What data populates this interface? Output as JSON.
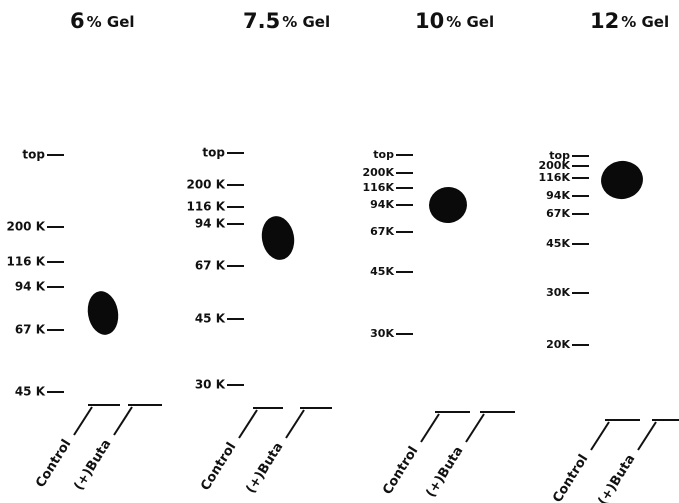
{
  "panels": [
    {
      "percent": "6",
      "unit": "% Gel",
      "markers": [
        "top",
        "200 K",
        "116 K",
        "94 K",
        "67 K",
        "45 K"
      ],
      "lanes": [
        "Control",
        "(+)Buta"
      ]
    },
    {
      "percent": "7.5",
      "unit": "% Gel",
      "markers": [
        "top",
        "200 K",
        "116 K",
        "94 K",
        "67 K",
        "45 K",
        "30 K"
      ],
      "lanes": [
        "Control",
        "(+)Buta"
      ]
    },
    {
      "percent": "10",
      "unit": "% Gel",
      "markers": [
        "top",
        "200K",
        "116K",
        "94K",
        "67K",
        "45K",
        "30K"
      ],
      "lanes": [
        "Control",
        "(+)Buta"
      ]
    },
    {
      "percent": "12",
      "unit": "% Gel",
      "markers": [
        "top",
        "200K",
        "116K",
        "94K",
        "67K",
        "45K",
        "30K",
        "20K"
      ],
      "lanes": [
        "Control",
        "(+)Buta"
      ]
    }
  ]
}
